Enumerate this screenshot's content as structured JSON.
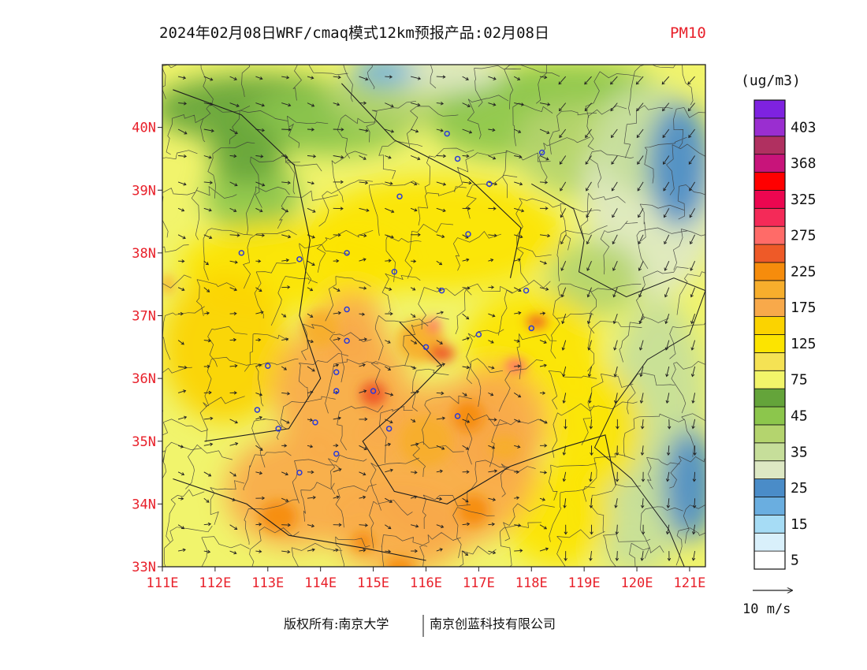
{
  "title": {
    "main": "2024年02月08日WRF/cmaq模式12km预报产品:02月08日",
    "species": "PM10",
    "species_color": "#e8202a"
  },
  "axes": {
    "lat_labels": [
      "40N",
      "39N",
      "38N",
      "37N",
      "36N",
      "35N",
      "34N",
      "33N"
    ],
    "lon_labels": [
      "111E",
      "112E",
      "113E",
      "114E",
      "115E",
      "116E",
      "117E",
      "118E",
      "119E",
      "120E",
      "121E"
    ],
    "label_color": "#e8202a",
    "lon_range": [
      111,
      121.3
    ],
    "lat_range": [
      33,
      41
    ]
  },
  "legend": {
    "unit": "(ug/m3)",
    "bins": [
      {
        "color": "#ffffff",
        "label": "5"
      },
      {
        "color": "#d9f0fb",
        "label": ""
      },
      {
        "color": "#a6dcf5",
        "label": "15"
      },
      {
        "color": "#6aaee0",
        "label": ""
      },
      {
        "color": "#4a8cc8",
        "label": "25"
      },
      {
        "color": "#dde8c4",
        "label": ""
      },
      {
        "color": "#c6de9a",
        "label": "35"
      },
      {
        "color": "#b4d46e",
        "label": ""
      },
      {
        "color": "#8cc64c",
        "label": "45"
      },
      {
        "color": "#64a43a",
        "label": ""
      },
      {
        "color": "#f2f56a",
        "label": "75"
      },
      {
        "color": "#f5e254",
        "label": ""
      },
      {
        "color": "#fce400",
        "label": "125"
      },
      {
        "color": "#fbd300",
        "label": ""
      },
      {
        "color": "#f8a94a",
        "label": "175"
      },
      {
        "color": "#f7ae2c",
        "label": ""
      },
      {
        "color": "#f68c0c",
        "label": "225"
      },
      {
        "color": "#ee5a28",
        "label": ""
      },
      {
        "color": "#ff6b68",
        "label": "275"
      },
      {
        "color": "#f42a58",
        "label": ""
      },
      {
        "color": "#ec0650",
        "label": "325"
      },
      {
        "color": "#ff0000",
        "label": ""
      },
      {
        "color": "#c8147a",
        "label": "368"
      },
      {
        "color": "#b03060",
        "label": ""
      },
      {
        "color": "#9a2ed0",
        "label": "403"
      },
      {
        "color": "#7e22e0",
        "label": ""
      }
    ]
  },
  "wind_reference": {
    "label": "10 m/s"
  },
  "footer": {
    "left": "版权所有:南京大学",
    "right": "南京创蓝科技有限公司"
  },
  "map_data": {
    "type": "heatmap",
    "cities": [
      [
        116.4,
        39.9
      ],
      [
        116.6,
        39.5
      ],
      [
        117.2,
        39.1
      ],
      [
        118.2,
        39.6
      ],
      [
        115.5,
        38.9
      ],
      [
        116.8,
        38.3
      ],
      [
        114.5,
        38.0
      ],
      [
        113.6,
        37.9
      ],
      [
        112.5,
        38.0
      ],
      [
        115.4,
        37.7
      ],
      [
        116.3,
        37.4
      ],
      [
        117.9,
        37.4
      ],
      [
        118.0,
        36.8
      ],
      [
        117.0,
        36.7
      ],
      [
        114.5,
        37.1
      ],
      [
        114.5,
        36.6
      ],
      [
        116.0,
        36.5
      ],
      [
        114.3,
        36.1
      ],
      [
        115.0,
        35.8
      ],
      [
        114.3,
        35.8
      ],
      [
        113.0,
        36.2
      ],
      [
        112.8,
        35.5
      ],
      [
        113.2,
        35.2
      ],
      [
        113.9,
        35.3
      ],
      [
        115.3,
        35.2
      ],
      [
        116.6,
        35.4
      ],
      [
        114.3,
        34.8
      ],
      [
        113.6,
        34.5
      ]
    ]
  }
}
